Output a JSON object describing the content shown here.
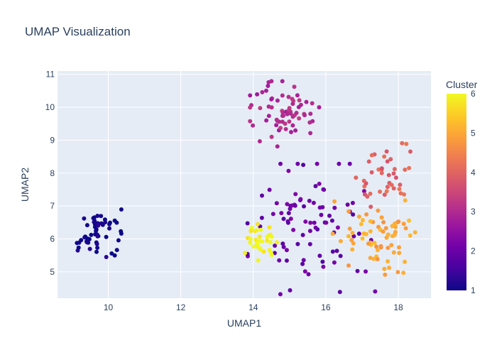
{
  "chart_data": {
    "type": "scatter",
    "title": "UMAP Visualization",
    "xlabel": "UMAP1",
    "ylabel": "UMAP2",
    "xlim": [
      8.6,
      18.9
    ],
    "ylim": [
      4.2,
      11.1
    ],
    "x_ticks": [
      10,
      12,
      14,
      16,
      18
    ],
    "x_tick_labels": [
      "10",
      "12",
      "14",
      "16",
      "18"
    ],
    "y_ticks": [
      5,
      6,
      7,
      8,
      9,
      10,
      11
    ],
    "y_tick_labels": [
      "5",
      "6",
      "7",
      "8",
      "9",
      "10",
      "11"
    ],
    "grid": true,
    "colorbar": {
      "title": "Cluster",
      "range": [
        1,
        6
      ],
      "ticks": [
        1,
        2,
        3,
        4,
        5,
        6
      ],
      "tick_labels": [
        "1",
        "2",
        "3",
        "4",
        "5",
        "6"
      ],
      "colorscale": [
        "#0d0887",
        "#46039f",
        "#7201a8",
        "#9c179e",
        "#bd3786",
        "#d8576b",
        "#ed7953",
        "#fb9f3a",
        "#fdca26",
        "#f0f921"
      ]
    },
    "clusters": [
      {
        "value": 1,
        "center": [
          9.7,
          6.2
        ],
        "spread": [
          0.3,
          0.35
        ],
        "count": 55,
        "seed": 11
      },
      {
        "value": 2,
        "center": [
          15.6,
          6.3
        ],
        "spread": [
          0.8,
          0.9
        ],
        "count": 90,
        "seed": 23
      },
      {
        "value": 3,
        "center": [
          14.9,
          9.8
        ],
        "spread": [
          0.45,
          0.45
        ],
        "count": 70,
        "seed": 37
      },
      {
        "value": 4,
        "center": [
          17.6,
          8.0
        ],
        "spread": [
          0.35,
          0.55
        ],
        "count": 40,
        "seed": 41
      },
      {
        "value": 5,
        "center": [
          17.4,
          6.1
        ],
        "spread": [
          0.55,
          0.55
        ],
        "count": 70,
        "seed": 53
      },
      {
        "value": 6,
        "center": [
          14.1,
          5.9
        ],
        "spread": [
          0.25,
          0.25
        ],
        "count": 35,
        "seed": 67
      }
    ]
  }
}
